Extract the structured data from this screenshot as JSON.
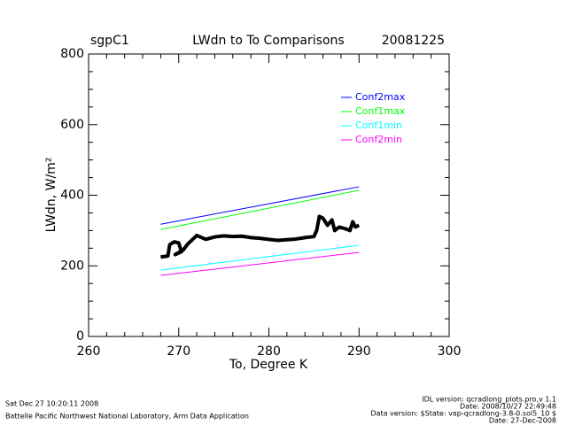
{
  "chart_data": {
    "type": "line",
    "site": "sgpC1",
    "title": "LWdn to To Comparisons",
    "date": "20081225",
    "x_label": "To, Degree K",
    "y_label": "LWdn, W/m²",
    "xlim": [
      260,
      300
    ],
    "xticks": [
      260,
      270,
      280,
      290,
      300
    ],
    "x_minor": 5,
    "ylim": [
      0,
      800
    ],
    "yticks": [
      0,
      200,
      400,
      600,
      800
    ],
    "y_minor": 4,
    "legend": "upper-right",
    "series": [
      {
        "name": "Conf2max",
        "color": "#0000ff",
        "x": [
          268,
          290
        ],
        "values": [
          318,
          424
        ]
      },
      {
        "name": "Conf1max",
        "color": "#00ff00",
        "x": [
          268,
          290
        ],
        "values": [
          303,
          414
        ]
      },
      {
        "name": "Conf1min",
        "color": "#00ffff",
        "x": [
          268,
          290
        ],
        "values": [
          188,
          258
        ]
      },
      {
        "name": "Conf2min",
        "color": "#ff00ff",
        "x": [
          268,
          290
        ],
        "values": [
          173,
          238
        ]
      },
      {
        "color": "#000000",
        "x": [
          268,
          268.8,
          269,
          269.5,
          270,
          270.3,
          269.6,
          270.5,
          271,
          272,
          273,
          274,
          275,
          276,
          277,
          278,
          279,
          280,
          281,
          282,
          283,
          284,
          285,
          285.3,
          285.6,
          286,
          286.5,
          287,
          287.3,
          287.8,
          288.5,
          289,
          289.3,
          289.6,
          290
        ],
        "values": [
          225,
          228,
          260,
          268,
          265,
          240,
          232,
          245,
          262,
          286,
          275,
          282,
          285,
          283,
          284,
          280,
          278,
          275,
          272,
          274,
          276,
          280,
          283,
          300,
          340,
          335,
          315,
          330,
          300,
          310,
          305,
          300,
          325,
          310,
          315
        ]
      }
    ],
    "footer_left": [
      "Sat Dec 27 10:20:11 2008",
      "Battelle Pacific Northwest National Laboratory, Arm Data Application"
    ],
    "footer_right": [
      "IDL version: qcradlong_plots.pro,v 1.1",
      "Date: 2008/10/27 22:49:48",
      "Data version: $State: vap-qcradlong-3.8-0.sol5_10 $",
      "Date: 27-Dec-2008"
    ]
  }
}
